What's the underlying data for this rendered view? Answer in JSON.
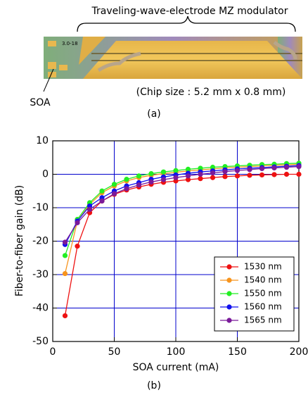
{
  "figure_a": {
    "title": "Traveling-wave-electrode MZ modulator",
    "soa_label": "SOA",
    "chip_size": "(Chip size :  5.2 mm x 0.8 mm)",
    "caption": "(a)"
  },
  "chart_data": {
    "type": "line",
    "caption": "(b)",
    "x_label": "SOA current (mA)",
    "y_label": "Fiber-to-fiber gain (dB)",
    "x": [
      10,
      20,
      30,
      40,
      50,
      60,
      70,
      80,
      90,
      100,
      110,
      120,
      130,
      140,
      150,
      160,
      170,
      180,
      190,
      200
    ],
    "series": [
      {
        "name": "1530 nm",
        "color": "#ee1111",
        "values": [
          -42.3,
          -21.5,
          -11.5,
          -8,
          -6,
          -4.7,
          -3.8,
          -3,
          -2.4,
          -2,
          -1.6,
          -1.3,
          -1,
          -0.7,
          -0.5,
          -0.3,
          -0.2,
          -0.1,
          0,
          0
        ]
      },
      {
        "name": "1540 nm",
        "color": "#f7941d",
        "values": [
          -29.7,
          -14,
          -9,
          -5.5,
          -3.5,
          -2,
          -1,
          -0.3,
          0.2,
          0.6,
          1,
          1.3,
          1.6,
          1.9,
          2.1,
          2.3,
          2.5,
          2.7,
          2.8,
          3
        ]
      },
      {
        "name": "1550 nm",
        "color": "#22ee22",
        "values": [
          -24.3,
          -13.5,
          -8.5,
          -5,
          -3,
          -1.5,
          -0.5,
          0.2,
          0.7,
          1.1,
          1.5,
          1.8,
          2.1,
          2.3,
          2.5,
          2.7,
          2.9,
          3,
          3.2,
          3.3
        ]
      },
      {
        "name": "1560 nm",
        "color": "#1111ee",
        "values": [
          -21,
          -14,
          -9.5,
          -7,
          -5,
          -3.5,
          -2.5,
          -1.5,
          -0.8,
          -0.2,
          0.3,
          0.7,
          1,
          1.3,
          1.6,
          1.8,
          2,
          2.2,
          2.4,
          2.6
        ]
      },
      {
        "name": "1565 nm",
        "color": "#7a1a9a",
        "values": [
          -20.3,
          -14.5,
          -10.5,
          -8,
          -5.8,
          -4.3,
          -3.2,
          -2.3,
          -1.6,
          -1,
          -0.5,
          0,
          0.4,
          0.8,
          1.1,
          1.4,
          1.7,
          1.9,
          2.1,
          2.3
        ]
      }
    ],
    "xlim": [
      0,
      200
    ],
    "xticks": [
      0,
      50,
      100,
      150,
      200
    ],
    "ylim": [
      -50,
      10
    ],
    "yticks": [
      -50,
      -40,
      -30,
      -20,
      -10,
      0,
      10
    ],
    "grid": true,
    "grid_color": "#0000cc",
    "legend": "lower right"
  }
}
